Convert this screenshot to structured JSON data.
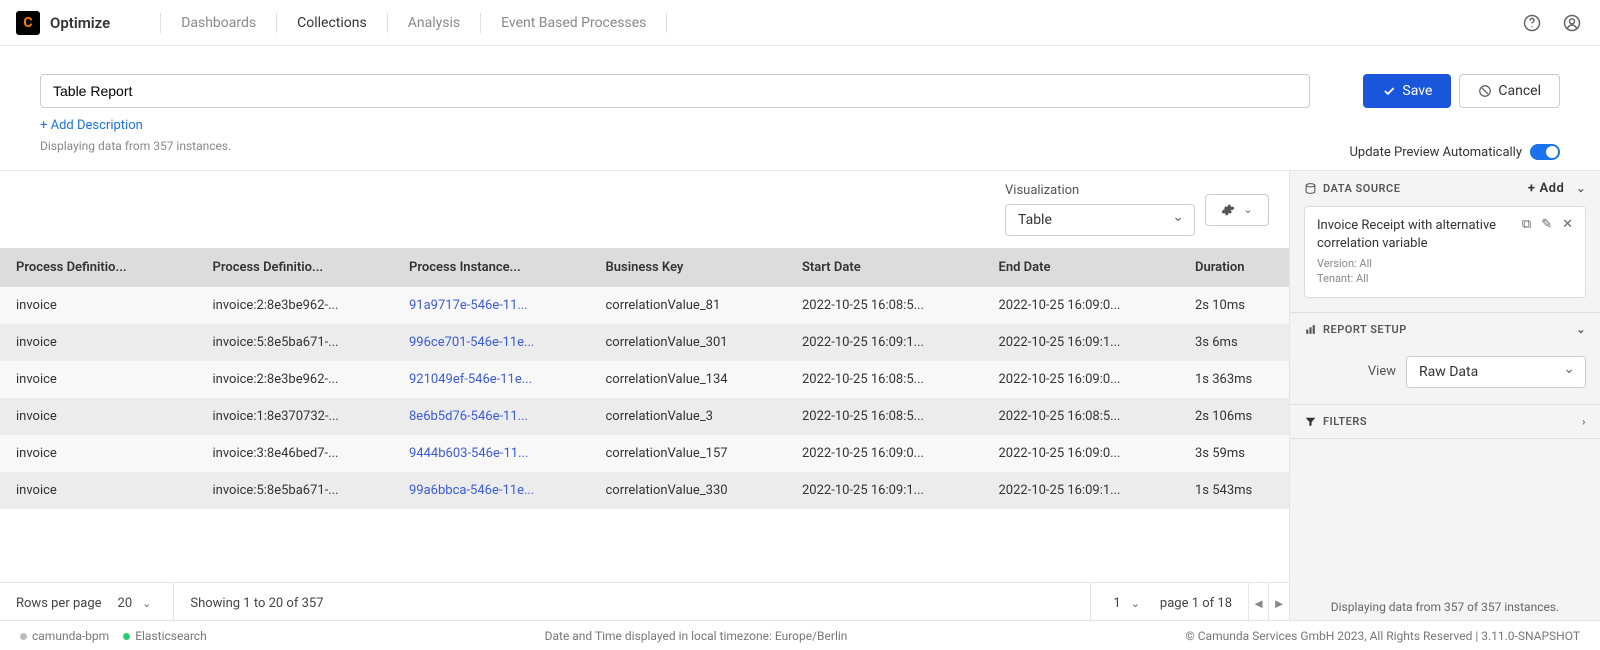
{
  "brand": "Optimize",
  "nav": {
    "dashboards": "Dashboards",
    "collections": "Collections",
    "analysis": "Analysis",
    "event_based": "Event Based Processes"
  },
  "title": "Table Report",
  "add_description": "+ Add Description",
  "instance_count_text": "Displaying data from 357 instances.",
  "buttons": {
    "save": "Save",
    "cancel": "Cancel"
  },
  "update_preview_label": "Update Preview Automatically",
  "visualization": {
    "label": "Visualization",
    "value": "Table"
  },
  "columns": [
    "Process Definitio...",
    "Process Definitio...",
    "Process Instance...",
    "Business Key",
    "Start Date",
    "End Date",
    "Duration"
  ],
  "rows": [
    {
      "c0": "invoice",
      "c1": "invoice:2:8e3be962-...",
      "c2": "91a9717e-546e-11...",
      "c3": "correlationValue_81",
      "c4": "2022-10-25 16:08:5...",
      "c5": "2022-10-25 16:09:0...",
      "c6": "2s 10ms"
    },
    {
      "c0": "invoice",
      "c1": "invoice:5:8e5ba671-...",
      "c2": "996ce701-546e-11e...",
      "c3": "correlationValue_301",
      "c4": "2022-10-25 16:09:1...",
      "c5": "2022-10-25 16:09:1...",
      "c6": "3s 6ms"
    },
    {
      "c0": "invoice",
      "c1": "invoice:2:8e3be962-...",
      "c2": "921049ef-546e-11e...",
      "c3": "correlationValue_134",
      "c4": "2022-10-25 16:08:5...",
      "c5": "2022-10-25 16:09:0...",
      "c6": "1s 363ms"
    },
    {
      "c0": "invoice",
      "c1": "invoice:1:8e370732-...",
      "c2": "8e6b5d76-546e-11...",
      "c3": "correlationValue_3",
      "c4": "2022-10-25 16:08:5...",
      "c5": "2022-10-25 16:08:5...",
      "c6": "2s 106ms"
    },
    {
      "c0": "invoice",
      "c1": "invoice:3:8e46bed7-...",
      "c2": "9444b603-546e-11...",
      "c3": "correlationValue_157",
      "c4": "2022-10-25 16:09:0...",
      "c5": "2022-10-25 16:09:0...",
      "c6": "3s 59ms"
    },
    {
      "c0": "invoice",
      "c1": "invoice:5:8e5ba671-...",
      "c2": "99a6bbca-546e-11e...",
      "c3": "correlationValue_330",
      "c4": "2022-10-25 16:09:1...",
      "c5": "2022-10-25 16:09:1...",
      "c6": "1s 543ms"
    }
  ],
  "pagination": {
    "rows_per_page_label": "Rows per page",
    "rows_per_page_value": "20",
    "showing": "Showing 1 to 20 of 357",
    "page_select": "1",
    "page_of": "page 1 of 18"
  },
  "right_panel": {
    "data_source_label": "DATA SOURCE",
    "add_label": "Add",
    "ds_title": "Invoice Receipt with alternative correlation variable",
    "ds_version": "Version: All",
    "ds_tenant": "Tenant: All",
    "report_setup_label": "REPORT SETUP",
    "view_label": "View",
    "view_value": "Raw Data",
    "filters_label": "FILTERS",
    "footer": "Displaying data from 357 of 357 instances."
  },
  "status": {
    "left1": "camunda-bpm",
    "left2": "Elasticsearch",
    "center": "Date and Time displayed in local timezone: Europe/Berlin",
    "right": "© Camunda Services GmbH 2023, All Rights Reserved | 3.11.0-SNAPSHOT"
  }
}
